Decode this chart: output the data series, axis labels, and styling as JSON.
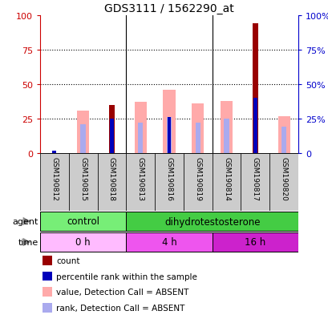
{
  "title": "GDS3111 / 1562290_at",
  "samples": [
    "GSM190812",
    "GSM190815",
    "GSM190818",
    "GSM190813",
    "GSM190816",
    "GSM190819",
    "GSM190814",
    "GSM190817",
    "GSM190820"
  ],
  "count_values": [
    0,
    0,
    35,
    0,
    0,
    0,
    0,
    94,
    0
  ],
  "percentile_rank_values": [
    2,
    0,
    25,
    0,
    26,
    0,
    0,
    40,
    0
  ],
  "value_absent": [
    0,
    31,
    0,
    37,
    46,
    36,
    38,
    0,
    27
  ],
  "rank_absent": [
    0,
    21,
    0,
    22,
    26,
    22,
    25,
    0,
    19
  ],
  "ylim": [
    0,
    100
  ],
  "yticks": [
    0,
    25,
    50,
    75,
    100
  ],
  "agent_groups": [
    {
      "label": "control",
      "start": 0,
      "end": 3,
      "color": "#77ee77"
    },
    {
      "label": "dihydrotestosterone",
      "start": 3,
      "end": 9,
      "color": "#44cc44"
    }
  ],
  "time_groups": [
    {
      "label": "0 h",
      "start": 0,
      "end": 3,
      "color": "#ffbbff"
    },
    {
      "label": "4 h",
      "start": 3,
      "end": 6,
      "color": "#ee55ee"
    },
    {
      "label": "16 h",
      "start": 6,
      "end": 9,
      "color": "#cc22cc"
    }
  ],
  "color_count": "#990000",
  "color_rank": "#0000bb",
  "color_value_absent": "#ffaaaa",
  "color_rank_absent": "#aaaaee",
  "color_bg": "#ffffff",
  "color_axis_left": "#cc0000",
  "color_axis_right": "#0000cc",
  "legend_items": [
    {
      "color": "#990000",
      "label": "count"
    },
    {
      "color": "#0000bb",
      "label": "percentile rank within the sample"
    },
    {
      "color": "#ffaaaa",
      "label": "value, Detection Call = ABSENT"
    },
    {
      "color": "#aaaaee",
      "label": "rank, Detection Call = ABSENT"
    }
  ]
}
